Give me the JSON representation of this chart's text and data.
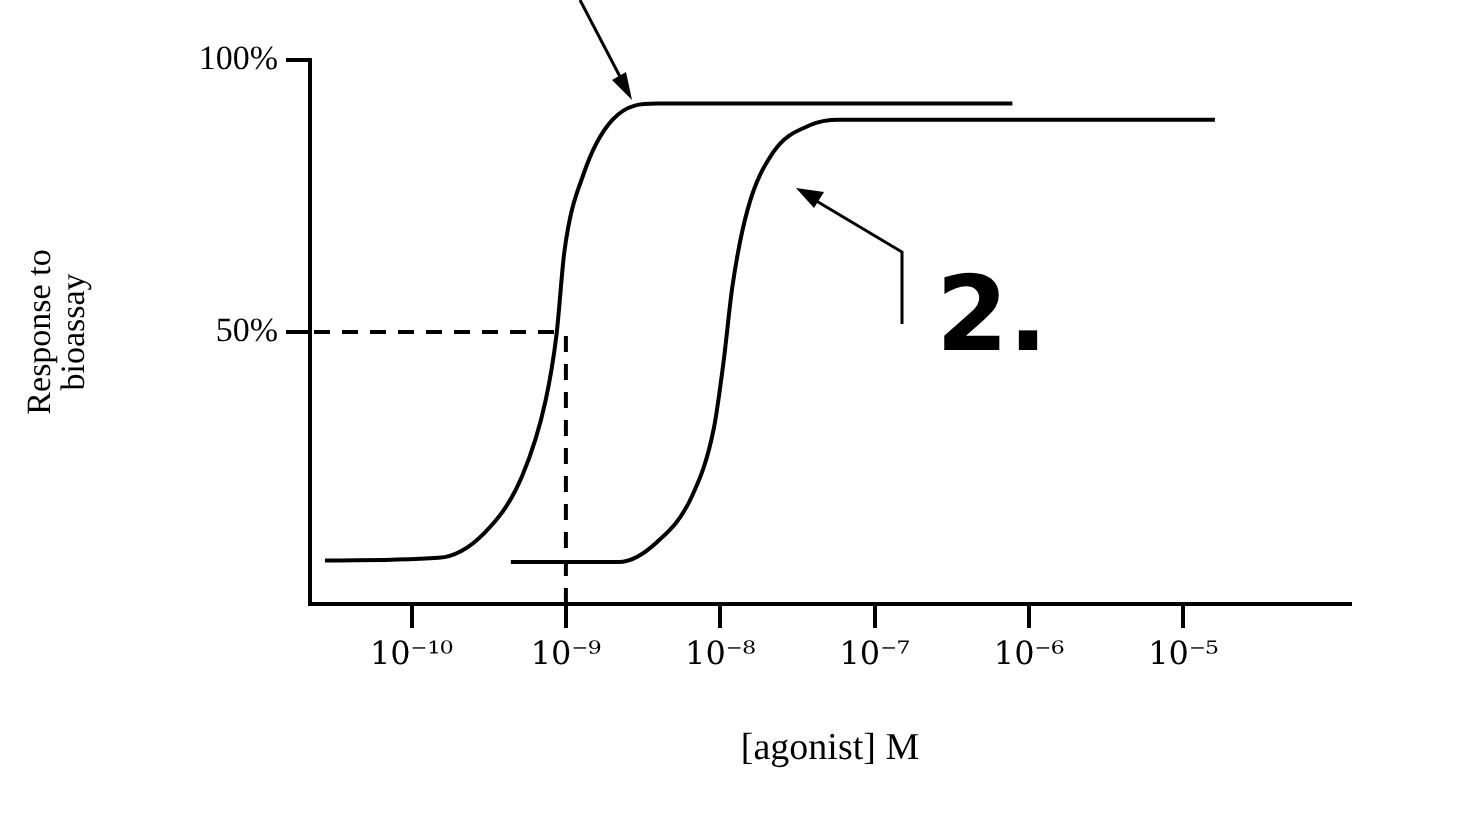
{
  "chart_data": {
    "type": "line",
    "xlabel": "[agonist] M",
    "ylabel": "Response to\nbioassay",
    "log": "x",
    "xlim": [
      2.2e-11,
      0.00012
    ],
    "ylim": [
      0,
      100
    ],
    "xticks": [
      {
        "value": 1e-10,
        "label": "10⁻¹⁰"
      },
      {
        "value": 1e-09,
        "label": "10⁻⁹"
      },
      {
        "value": 1e-08,
        "label": "10⁻⁸"
      },
      {
        "value": 1e-07,
        "label": "10⁻⁷"
      },
      {
        "value": 1e-06,
        "label": "10⁻⁶"
      },
      {
        "value": 1e-05,
        "label": "10⁻⁵"
      }
    ],
    "yticks": [
      {
        "value": 50,
        "label": "50%"
      },
      {
        "value": 100,
        "label": "100%"
      }
    ],
    "series": [
      {
        "color": "#000000",
        "x": [
          2.75e-11,
          1.5e-10,
          2.95e-10,
          5.2e-10,
          7.4e-10,
          8.7e-10,
          9.8e-10,
          1.3e-09,
          2e-09,
          3.9e-09,
          7.8e-07
        ],
        "values": [
          8,
          8.5,
          13,
          23.5,
          37.5,
          49.6,
          65,
          79,
          89,
          92,
          92
        ]
      },
      {
        "color": "#000000",
        "x": [
          4.4e-10,
          2.2e-09,
          3.9e-09,
          6.6e-09,
          9.1e-09,
          1.05e-08,
          1.2e-08,
          1.5e-08,
          2.2e-08,
          3.8e-08,
          5.9e-08,
          1.6e-05
        ],
        "values": [
          7.7,
          7.7,
          11.4,
          20,
          32.4,
          44.5,
          58.5,
          72.4,
          83,
          88,
          89,
          89
        ]
      }
    ],
    "ref_lines": [
      {
        "axis": "y",
        "value": 50,
        "line_style": "dashed"
      },
      {
        "axis": "x",
        "value": 1e-09,
        "line_style": "dashed"
      }
    ],
    "annotations": [
      "2."
    ],
    "grid": false,
    "legend": false,
    "marker": "none",
    "line_style": "solid"
  }
}
